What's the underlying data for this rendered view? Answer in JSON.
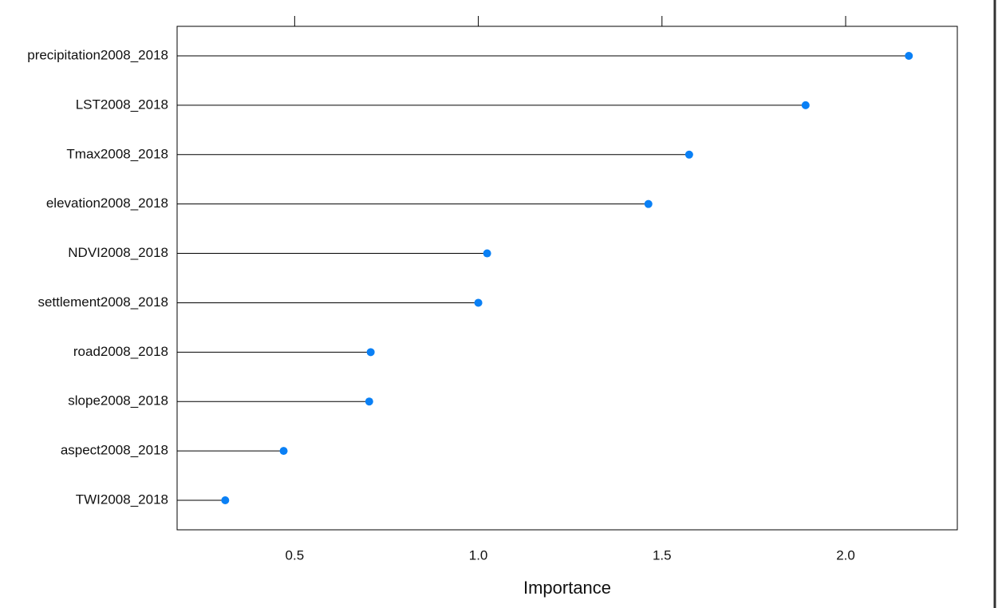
{
  "chart_data": {
    "type": "lollipop",
    "xlabel": "Importance",
    "categories": [
      "precipitation2008_2018",
      "LST2008_2018",
      "Tmax2008_2018",
      "elevation2008_2018",
      "NDVI2008_2018",
      "settlement2008_2018",
      "road2008_2018",
      "slope2008_2018",
      "aspect2008_2018",
      "TWI2008_2018"
    ],
    "values": [
      2.172,
      1.891,
      1.574,
      1.463,
      1.024,
      1.0,
      0.707,
      0.703,
      0.47,
      0.311
    ],
    "color": "#0a80f5",
    "xlim": [
      0.18,
      2.304
    ],
    "xticks": [
      0.5,
      {
        "value": 1.0,
        "label": "1.0"
      },
      1.5,
      {
        "value": 2.0,
        "label": "2.0"
      }
    ]
  }
}
